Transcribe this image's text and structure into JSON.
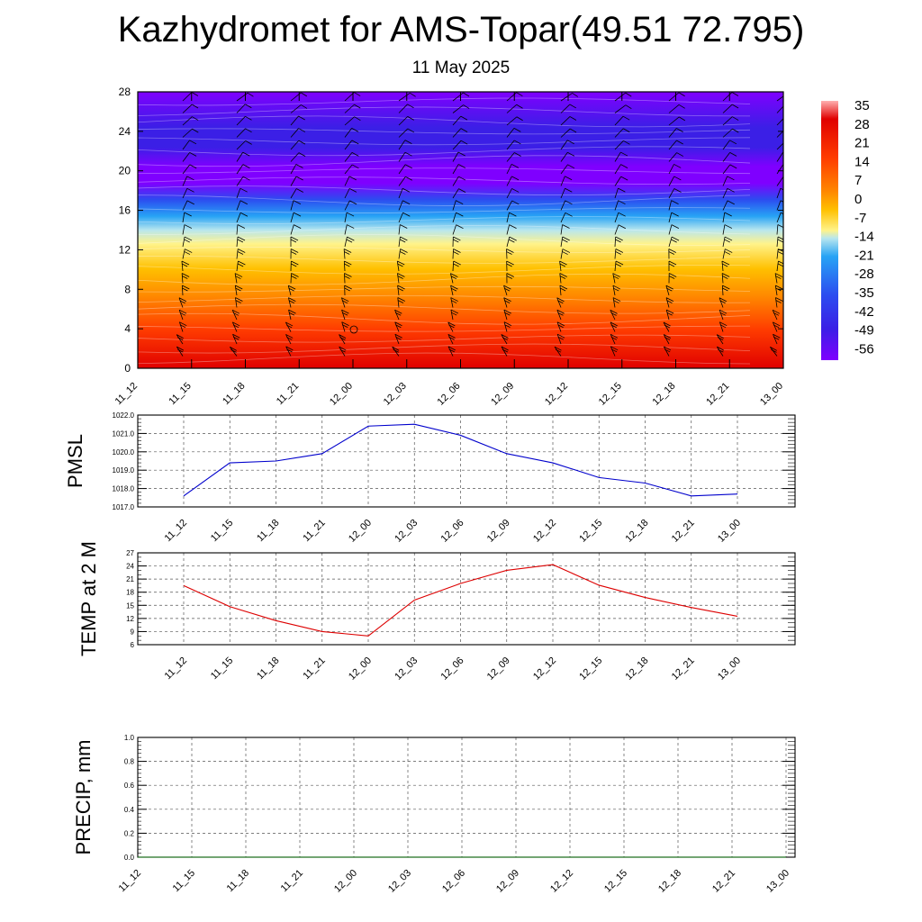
{
  "header": {
    "title": "Kazhydromet for AMS-Topar(49.51 72.795)",
    "subtitle": "11 May 2025"
  },
  "chart_data": [
    {
      "type": "heatmap",
      "name": "temperature-wind-cross-section",
      "x_ticks": [
        "11_12",
        "11_15",
        "11_18",
        "11_21",
        "12_00",
        "12_03",
        "12_06",
        "12_09",
        "12_12",
        "12_15",
        "12_18",
        "12_21",
        "13_00"
      ],
      "y_ticks": [
        "0",
        "4",
        "8",
        "12",
        "16",
        "20",
        "24",
        "28"
      ],
      "ylim": [
        0,
        28
      ],
      "colorbar_labels": [
        "35",
        "28",
        "21",
        "14",
        "7",
        "0",
        "-7",
        "-14",
        "-21",
        "-28",
        "-35",
        "-42",
        "-49",
        "-56"
      ],
      "colorbar_range": [
        -60,
        40
      ],
      "colors": [
        "#7f00ff",
        "#3b1fe6",
        "#2c4cf0",
        "#27a3f5",
        "#b8e6ee",
        "#fff38a",
        "#ffc000",
        "#ff8800",
        "#ff3c00",
        "#e00000",
        "#ffb0b0"
      ],
      "grid": false,
      "wind_barbs": true
    },
    {
      "type": "line",
      "name": "pmsl",
      "ylabel": "PMSL",
      "x": [
        "11_12",
        "11_15",
        "11_18",
        "11_21",
        "12_00",
        "12_03",
        "12_06",
        "12_09",
        "12_12",
        "12_15",
        "12_18",
        "12_21",
        "13_00"
      ],
      "y_ticks": [
        "1017.0",
        "1018.0",
        "1019.0",
        "1020.0",
        "1021.0",
        "1022.0"
      ],
      "ylim": [
        1017,
        1022
      ],
      "values": [
        1017.6,
        1019.4,
        1019.5,
        1019.9,
        1021.4,
        1021.5,
        1020.9,
        1019.9,
        1019.4,
        1018.6,
        1018.3,
        1017.6,
        1017.7
      ],
      "color": "#0000cc",
      "grid": true
    },
    {
      "type": "line",
      "name": "temp-2m",
      "ylabel": "TEMP at 2 M",
      "x": [
        "11_12",
        "11_15",
        "11_18",
        "11_21",
        "12_00",
        "12_03",
        "12_06",
        "12_09",
        "12_12",
        "12_15",
        "12_18",
        "12_21",
        "13_00"
      ],
      "y_ticks": [
        "6",
        "9",
        "12",
        "15",
        "18",
        "21",
        "24",
        "27"
      ],
      "ylim": [
        6,
        27
      ],
      "values": [
        19.5,
        14.7,
        11.5,
        9.0,
        8.0,
        16.2,
        20.0,
        23.0,
        24.3,
        19.6,
        16.8,
        14.5,
        12.5
      ],
      "color": "#dd0000",
      "grid": true
    },
    {
      "type": "line",
      "name": "precip",
      "ylabel": "PRECIP, mm",
      "x": [
        "11_12",
        "11_15",
        "11_18",
        "11_21",
        "12_00",
        "12_03",
        "12_06",
        "12_09",
        "12_12",
        "12_15",
        "12_18",
        "12_21",
        "13_00"
      ],
      "y_ticks": [
        "0.0",
        "0.2",
        "0.4",
        "0.6",
        "0.8",
        "1.0"
      ],
      "ylim": [
        0,
        1
      ],
      "values": [
        0,
        0,
        0,
        0,
        0,
        0,
        0,
        0,
        0,
        0,
        0,
        0,
        0
      ],
      "color": "#006400",
      "grid": true
    }
  ]
}
